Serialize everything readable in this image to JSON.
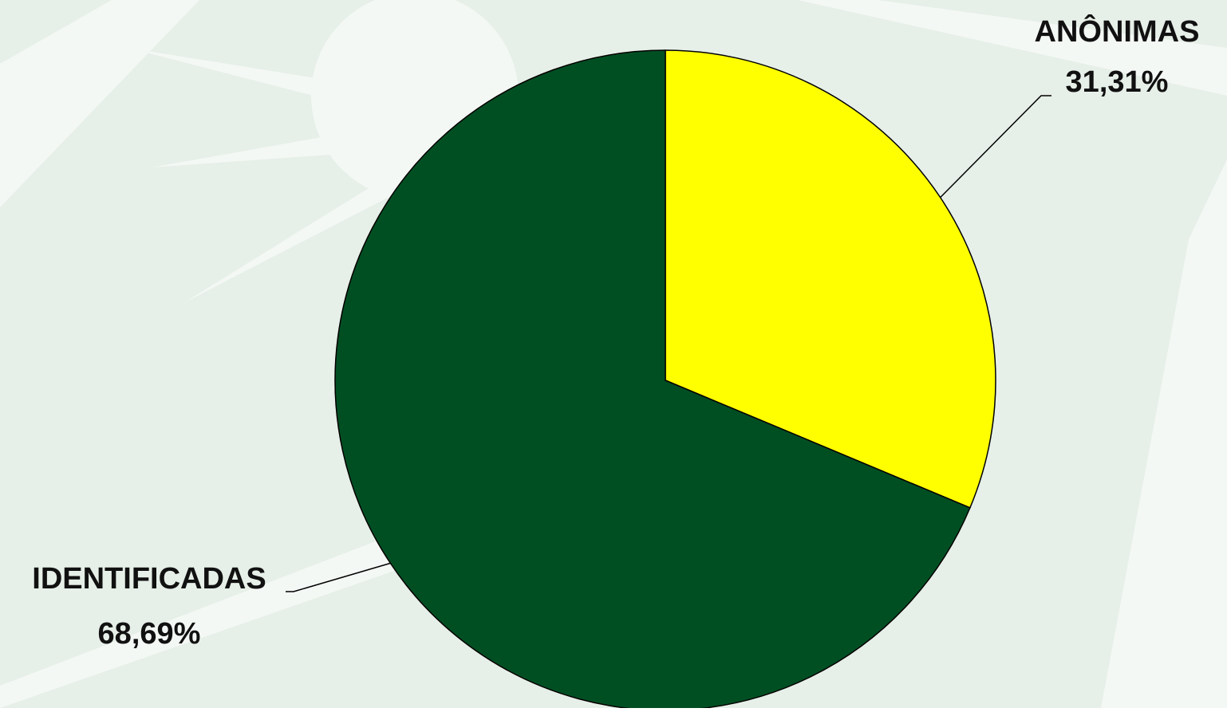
{
  "chart_data": {
    "type": "pie",
    "categories": [
      "ANÔNIMAS",
      "IDENTIFICADAS"
    ],
    "values": [
      31.31,
      68.69
    ],
    "value_labels": [
      "31,31%",
      "68,69%"
    ],
    "colors": [
      "#ffff00",
      "#004f23"
    ]
  }
}
